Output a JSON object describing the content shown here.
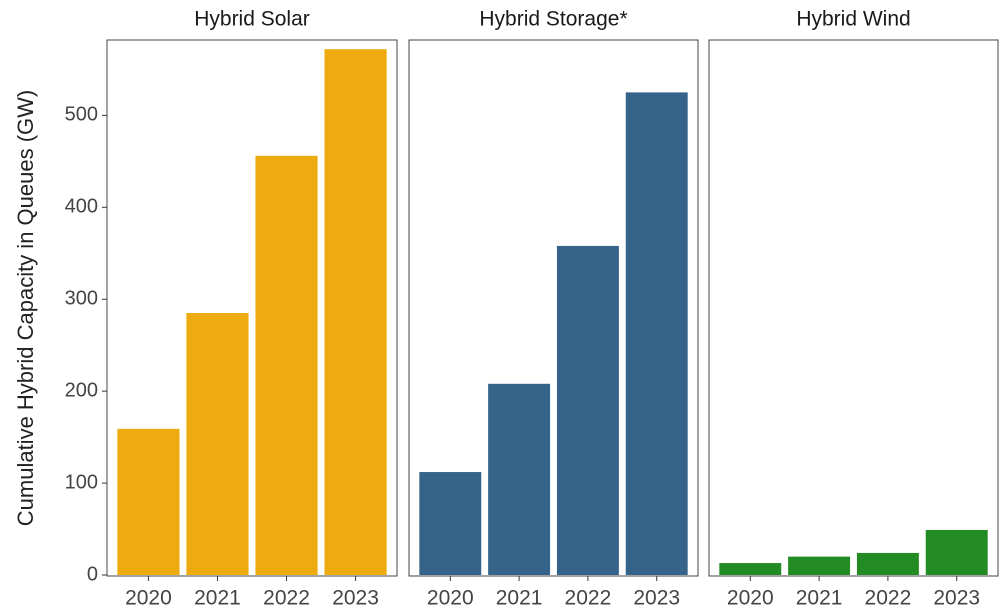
{
  "chart_data": {
    "type": "bar",
    "ylabel": "Cumulative Hybrid Capacity in Queues (GW)",
    "categories": [
      "2020",
      "2021",
      "2022",
      "2023"
    ],
    "series": [
      {
        "name": "Hybrid Solar",
        "color": "#eeab0f",
        "values": [
          159,
          285,
          456,
          572
        ]
      },
      {
        "name": "Hybrid Storage*",
        "color": "#35638a",
        "values": [
          112,
          208,
          358,
          525
        ]
      },
      {
        "name": "Hybrid Wind",
        "color": "#238b23",
        "values": [
          13,
          20,
          24,
          49
        ]
      }
    ],
    "ylim": [
      0,
      582
    ],
    "yticks": [
      0,
      100,
      200,
      300,
      400,
      500
    ]
  }
}
